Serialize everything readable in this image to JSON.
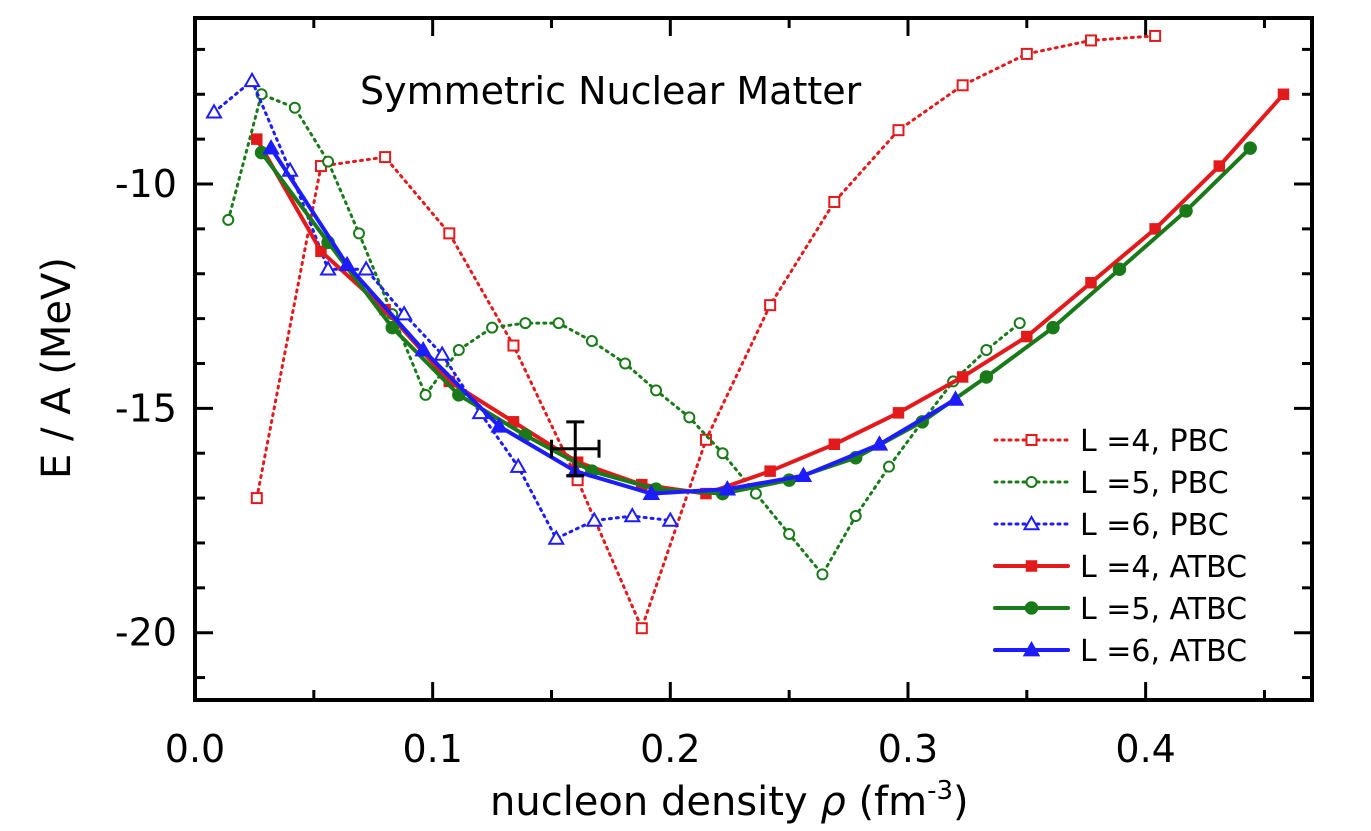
{
  "chart_data": {
    "type": "line",
    "title": "Symmetric Nuclear Matter",
    "xlabel_main": "nucleon density ",
    "xlabel_symbol": "ρ",
    "xlabel_unit": " (fm",
    "xlabel_exp": "-3",
    "xlabel_close": ")",
    "ylabel": "E / A (MeV)",
    "xlim": [
      0.0,
      0.47
    ],
    "ylim": [
      -21.5,
      -6.3
    ],
    "xticks": [
      0.0,
      0.1,
      0.2,
      0.3,
      0.4
    ],
    "xtick_labels": [
      "0.0",
      "0.1",
      "0.2",
      "0.3",
      "0.4"
    ],
    "yticks": [
      -10,
      -15,
      -20
    ],
    "ytick_labels": [
      "-10",
      "-15",
      "-20"
    ],
    "legend_position": "lower-right",
    "series": [
      {
        "name": "L =4, PBC",
        "color": "#e31a1c",
        "style": "dotted",
        "marker": "square-open",
        "x": [
          0.026,
          0.053,
          0.08,
          0.107,
          0.134,
          0.161,
          0.188,
          0.215,
          0.242,
          0.269,
          0.296,
          0.323,
          0.35,
          0.377,
          0.404
        ],
        "y": [
          -17.0,
          -9.6,
          -9.4,
          -11.1,
          -13.6,
          -16.6,
          -19.9,
          -15.7,
          -12.7,
          -10.4,
          -8.8,
          -7.8,
          -7.1,
          -6.8,
          -6.7
        ]
      },
      {
        "name": "L =5, PBC",
        "color": "#1a7a1a",
        "style": "dotted",
        "marker": "circle-open",
        "x": [
          0.014,
          0.028,
          0.042,
          0.056,
          0.069,
          0.083,
          0.097,
          0.111,
          0.125,
          0.139,
          0.153,
          0.167,
          0.181,
          0.194,
          0.208,
          0.222,
          0.236,
          0.25,
          0.264,
          0.278,
          0.292,
          0.306,
          0.319,
          0.333,
          0.347
        ],
        "y": [
          -10.8,
          -8.0,
          -8.3,
          -9.5,
          -11.1,
          -12.9,
          -14.7,
          -13.7,
          -13.2,
          -13.1,
          -13.1,
          -13.5,
          -14.0,
          -14.6,
          -15.2,
          -16.0,
          -16.9,
          -17.8,
          -18.7,
          -17.4,
          -16.3,
          -15.3,
          -14.4,
          -13.7,
          -13.1
        ]
      },
      {
        "name": "L =6, PBC",
        "color": "#1c1cff",
        "style": "dotted",
        "marker": "triangle-open",
        "x": [
          0.008,
          0.024,
          0.04,
          0.056,
          0.072,
          0.088,
          0.104,
          0.12,
          0.136,
          0.152,
          0.168,
          0.184,
          0.2
        ],
        "y": [
          -8.4,
          -7.7,
          -9.7,
          -11.9,
          -11.9,
          -12.9,
          -13.8,
          -15.1,
          -16.3,
          -17.9,
          -17.5,
          -17.4,
          -17.5
        ]
      },
      {
        "name": "L =4, ATBC",
        "color": "#e31a1c",
        "style": "solid",
        "marker": "square-filled",
        "x": [
          0.026,
          0.053,
          0.08,
          0.107,
          0.134,
          0.161,
          0.188,
          0.215,
          0.242,
          0.269,
          0.296,
          0.323,
          0.35,
          0.377,
          0.404,
          0.431,
          0.458
        ],
        "y": [
          -9.0,
          -11.5,
          -12.8,
          -14.4,
          -15.3,
          -16.2,
          -16.7,
          -16.9,
          -16.4,
          -15.8,
          -15.1,
          -14.3,
          -13.4,
          -12.2,
          -11.0,
          -9.6,
          -8.0
        ]
      },
      {
        "name": "L =5, ATBC",
        "color": "#1a7a1a",
        "style": "solid",
        "marker": "circle-filled",
        "x": [
          0.028,
          0.056,
          0.083,
          0.111,
          0.139,
          0.167,
          0.194,
          0.222,
          0.25,
          0.278,
          0.306,
          0.333,
          0.361,
          0.389,
          0.417,
          0.444
        ],
        "y": [
          -9.3,
          -11.3,
          -13.2,
          -14.7,
          -15.6,
          -16.4,
          -16.8,
          -16.9,
          -16.6,
          -16.1,
          -15.3,
          -14.3,
          -13.2,
          -11.9,
          -10.6,
          -9.2
        ]
      },
      {
        "name": "L =6, ATBC",
        "color": "#1c1cff",
        "style": "solid",
        "marker": "triangle-filled",
        "x": [
          0.032,
          0.064,
          0.096,
          0.128,
          0.16,
          0.192,
          0.224,
          0.256,
          0.288,
          0.32
        ],
        "y": [
          -9.2,
          -11.8,
          -13.7,
          -15.4,
          -16.4,
          -16.9,
          -16.8,
          -16.5,
          -15.8,
          -14.8
        ]
      }
    ],
    "empirical_point": {
      "x": 0.16,
      "y": -15.9,
      "x_err": 0.01,
      "y_err": 0.6,
      "color": "#000000"
    }
  }
}
